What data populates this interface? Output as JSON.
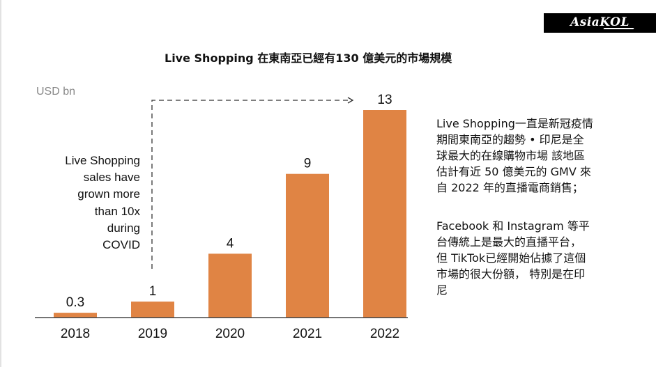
{
  "slide": {
    "logo_text": "AsiaKOL",
    "title": "Live Shopping 在東南亞已經有130 億美元的市場規模"
  },
  "chart_data": {
    "type": "bar",
    "categories": [
      "2018",
      "2019",
      "2020",
      "2021",
      "2022"
    ],
    "values": [
      0.3,
      1,
      4,
      9,
      13
    ],
    "data_labels": [
      "0.3",
      "1",
      "4",
      "9",
      "13"
    ],
    "title": "Live Shopping 在東南亞已經有130 億美元的市場規模",
    "ylabel": "USD bn",
    "ylim": [
      0,
      13
    ],
    "grid": false,
    "bar_color": "#e08444",
    "annotation_lines": [
      "Live Shopping",
      "sales have",
      "grown more",
      "than 10x",
      "during",
      "COVID"
    ],
    "annotation_arrow": {
      "from": "2019",
      "to": "2022",
      "style": "dashed"
    }
  },
  "text_panel": {
    "paragraph_1": [
      "Live Shopping一直是新冠疫情",
      "期間東南亞的趨勢 • 印尼是全",
      "球最大的在線購物市場 該地區",
      "估計有近 50 億美元的 GMV 來",
      "自 2022 年的直播電商銷售；"
    ],
    "paragraph_2": [
      "Facebook 和 Instagram 等平",
      "台傳統上是最大的直播平台，",
      "但 TikTok已經開始佔據了這個",
      "市場的很大份額， 特別是在印",
      "尼"
    ]
  }
}
